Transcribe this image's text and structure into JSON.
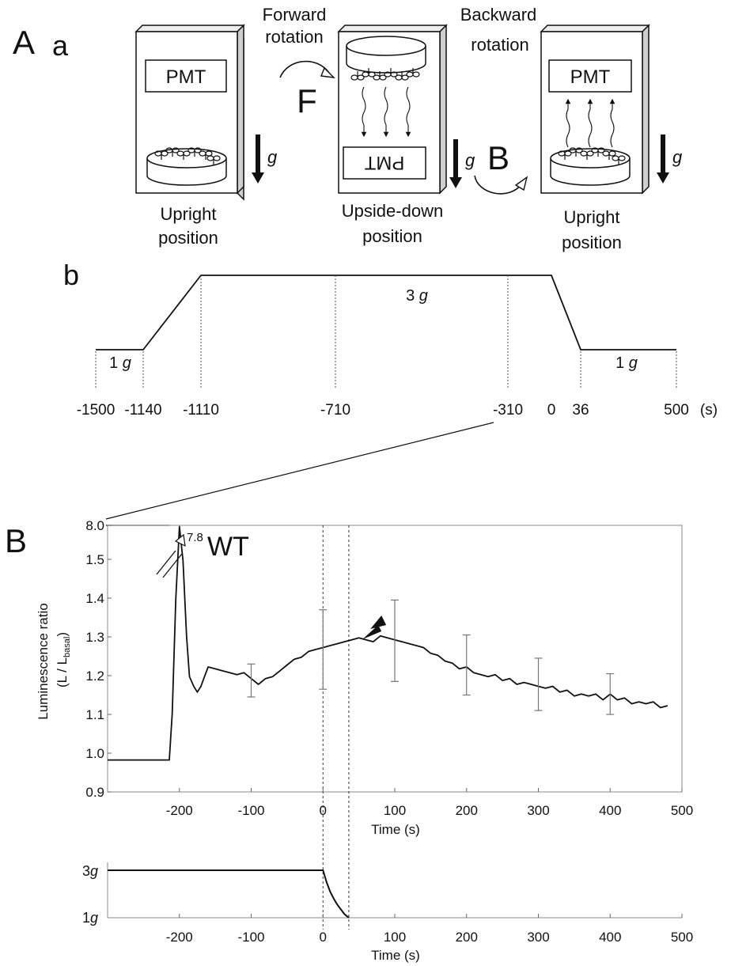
{
  "panel_A": {
    "big_letter": "A",
    "sub_a": "a",
    "sub_b": "b",
    "pmt": "PMT",
    "forward_label": [
      "Forward",
      "rotation"
    ],
    "backward_label": [
      "Backward",
      "rotation"
    ],
    "f_letter": "F",
    "b_letter": "B",
    "g": "g",
    "positions": [
      [
        "Upright",
        "position"
      ],
      [
        "Upside-down",
        "position"
      ],
      [
        "Upright",
        "position"
      ]
    ],
    "protocol": {
      "g_labels": [
        {
          "num": "1 ",
          "g": "g"
        },
        {
          "num": "3 ",
          "g": "g"
        },
        {
          "num": "1 ",
          "g": "g"
        }
      ],
      "tick_labels": [
        "-1500",
        "-1140",
        "-1110",
        "-710",
        "-310",
        "0",
        "36",
        "500"
      ],
      "unit": "(s)"
    }
  },
  "panel_B": {
    "letter": "B",
    "genotype": "WT",
    "peak_label": "7.8",
    "ylabel_line1": "Luminescence ratio",
    "ylabel_line2_prefix": "(L / L",
    "ylabel_sub": "basal",
    "ylabel_line2_suffix": ")",
    "xlabel": "Time (s)",
    "accel_y_ticks": [
      {
        "num": "3",
        "g": "g"
      },
      {
        "num": "1",
        "g": "g"
      }
    ]
  },
  "chart_data": [
    {
      "type": "line",
      "title": "",
      "xlabel": "",
      "ylabel": "",
      "series": [
        {
          "name": "",
          "x": [
            -1500,
            -1140,
            -1110,
            -310,
            0,
            36,
            500
          ],
          "y": [
            1,
            1,
            3,
            3,
            3,
            1,
            1
          ]
        }
      ],
      "xticks": [
        -1500,
        -1140,
        -1110,
        -710,
        -310,
        0,
        36,
        500
      ],
      "dashed_verticals": [
        -1500,
        -1140,
        -1110,
        -710,
        -310,
        36,
        500
      ]
    },
    {
      "type": "line",
      "xlabel": "Time (s)",
      "ylabel": "Luminescence ratio (L / L basal)",
      "xlim": [
        -300,
        500
      ],
      "ylim": [
        0.9,
        8.0
      ],
      "y_axis_break": [
        1.5,
        8.0
      ],
      "yticks": [
        "0.9",
        "1.0",
        "1.1",
        "1.2",
        "1.3",
        "1.4",
        "1.5",
        "8.0"
      ],
      "xticks": [
        "-200",
        "-100",
        "0",
        "100",
        "200",
        "300",
        "400",
        "500"
      ],
      "series": [
        {
          "name": "",
          "x": [
            -300,
            -280,
            -260,
            -240,
            -220,
            -214,
            -210,
            -205,
            -200,
            -195,
            -190,
            -186,
            -180,
            -175,
            -170,
            -165,
            -160,
            -150,
            -140,
            -130,
            -120,
            -110,
            -100,
            -90,
            -80,
            -70,
            -60,
            -50,
            -40,
            -30,
            -20,
            -10,
            0,
            10,
            20,
            30,
            40,
            50,
            60,
            70,
            80,
            90,
            100,
            110,
            120,
            130,
            140,
            150,
            160,
            170,
            180,
            190,
            200,
            210,
            220,
            230,
            240,
            250,
            260,
            270,
            280,
            290,
            300,
            310,
            320,
            330,
            340,
            350,
            360,
            370,
            380,
            390,
            400,
            410,
            420,
            430,
            440,
            450,
            460,
            470,
            480
          ],
          "y": [
            0.98,
            0.985,
            0.98,
            0.985,
            0.98,
            0.985,
            1.1,
            1.4,
            7.8,
            1.5,
            1.3,
            1.2,
            1.17,
            1.16,
            1.17,
            1.2,
            1.22,
            1.22,
            1.21,
            1.21,
            1.2,
            1.21,
            1.19,
            1.18,
            1.19,
            1.2,
            1.21,
            1.23,
            1.24,
            1.25,
            1.26,
            1.27,
            1.27,
            1.28,
            1.28,
            1.29,
            1.29,
            1.3,
            1.29,
            1.29,
            1.3,
            1.3,
            1.29,
            1.29,
            1.28,
            1.28,
            1.27,
            1.26,
            1.25,
            1.24,
            1.23,
            1.22,
            1.22,
            1.21,
            1.2,
            1.2,
            1.2,
            1.19,
            1.19,
            1.18,
            1.18,
            1.18,
            1.17,
            1.17,
            1.17,
            1.16,
            1.16,
            1.15,
            1.15,
            1.15,
            1.15,
            1.14,
            1.15,
            1.14,
            1.14,
            1.13,
            1.13,
            1.13,
            1.13,
            1.12,
            1.12
          ]
        }
      ],
      "error_bars": [
        {
          "x": -100,
          "y": 1.19,
          "lo": 1.145,
          "hi": 1.23
        },
        {
          "x": 0,
          "y": 1.27,
          "lo": 1.165,
          "hi": 1.37
        },
        {
          "x": 100,
          "y": 1.29,
          "lo": 1.185,
          "hi": 1.395
        },
        {
          "x": 200,
          "y": 1.23,
          "lo": 1.15,
          "hi": 1.305
        },
        {
          "x": 300,
          "y": 1.18,
          "lo": 1.11,
          "hi": 1.245
        },
        {
          "x": 400,
          "y": 1.15,
          "lo": 1.1,
          "hi": 1.205
        }
      ],
      "dashed_verticals": [
        0,
        36
      ],
      "arrow_marker_x": 55
    },
    {
      "type": "line",
      "xlabel": "Time (s)",
      "ylabel": "",
      "xlim": [
        -300,
        500
      ],
      "ylim": [
        1,
        3
      ],
      "xticks": [
        "-200",
        "-100",
        "0",
        "100",
        "200",
        "300",
        "400",
        "500"
      ],
      "series": [
        {
          "name": "",
          "x": [
            -300,
            0,
            5,
            10,
            15,
            20,
            25,
            30,
            36
          ],
          "y": [
            3,
            3,
            2.5,
            2.1,
            1.8,
            1.55,
            1.35,
            1.15,
            1
          ]
        }
      ],
      "dashed_verticals": [
        0,
        36
      ]
    }
  ]
}
